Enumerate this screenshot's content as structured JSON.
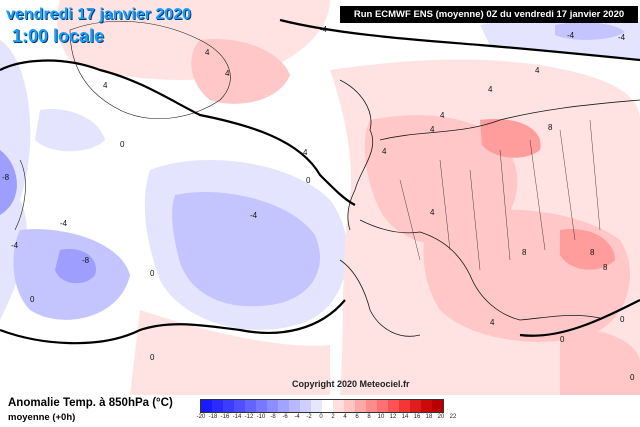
{
  "header": {
    "date": "vendredi 17 janvier 2020",
    "time": "1:00 locale",
    "run_info": "Run ECMWF ENS (moyenne) 0Z du vendredi 17 janvier 2020"
  },
  "copyright": "Copyright 2020 Meteociel.fr",
  "legend": {
    "title": "Anomalie Temp. à 850hPa (°C)",
    "subtitle": "moyenne  (+0h)",
    "ticks": [
      "-20",
      "-18",
      "-16",
      "-14",
      "-12",
      "-10",
      "-8",
      "-6",
      "-4",
      "-2",
      "0",
      "2",
      "4",
      "6",
      "8",
      "10",
      "12",
      "14",
      "16",
      "18",
      "20",
      "22"
    ],
    "colors": [
      "#1a1aff",
      "#2b2bff",
      "#3c3cff",
      "#4f4fff",
      "#6363ff",
      "#7878ff",
      "#8d8dff",
      "#a3a3ff",
      "#b8b8ff",
      "#cfcfff",
      "#e6e6ff",
      "#ffffff",
      "#ffdede",
      "#ffc4c4",
      "#ffa8a8",
      "#ff8c8c",
      "#ff7070",
      "#ff5252",
      "#f53636",
      "#e01c1c",
      "#cc0a0a",
      "#b80000"
    ]
  },
  "map": {
    "contour_labels": [
      "4",
      "4",
      "4",
      "4",
      "4",
      "4",
      "4",
      "4",
      "4",
      "4",
      "0",
      "0",
      "0",
      "0",
      "0",
      "-4",
      "-4",
      "-8",
      "-4",
      "-4",
      "8",
      "8",
      "8",
      "8",
      "0",
      "0",
      "-4",
      "-8",
      "-4",
      "4",
      "0"
    ],
    "colors": {
      "background": "#ffffff",
      "warm_light": "#ffe3e3",
      "warm_medium": "#ffc7c7",
      "warm_strong": "#ff9c9c",
      "cold_light": "#e4e4ff",
      "cold_medium": "#c4c4ff",
      "cold_strong": "#9e9eff",
      "zero_line": "#000000",
      "borders": "#1a1a1a"
    }
  }
}
